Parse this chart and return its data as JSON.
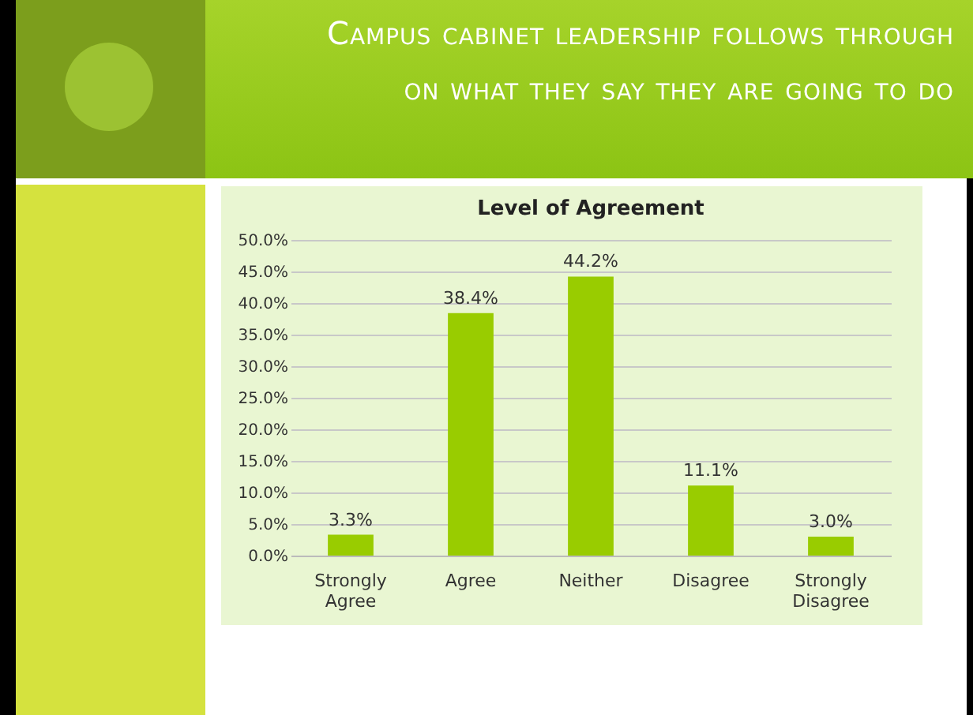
{
  "chart_data": {
    "type": "bar",
    "title": "Campus cabinet leadership follows through on what they say they are going to do",
    "subtitle": "Level of Agreement",
    "categories": [
      "Strongly Agree",
      "Agree",
      "Neither",
      "Disagree",
      "Strongly Disagree"
    ],
    "values": [
      3.3,
      38.4,
      44.2,
      11.1,
      3.0
    ],
    "value_labels": [
      "3.3%",
      "38.4%",
      "44.2%",
      "11.1%",
      "3.0%"
    ],
    "color": "#99cc00",
    "ylim": [
      0,
      50
    ],
    "yticks": [
      {
        "value": 0,
        "label": "0.0%"
      },
      {
        "value": 5,
        "label": "5.0%"
      },
      {
        "value": 10,
        "label": "10.0%"
      },
      {
        "value": 15,
        "label": "15.0%"
      },
      {
        "value": 20,
        "label": "20.0%"
      },
      {
        "value": 25,
        "label": "25.0%"
      },
      {
        "value": 30,
        "label": "30.0%"
      },
      {
        "value": 35,
        "label": "35.0%"
      },
      {
        "value": 40,
        "label": "40.0%"
      },
      {
        "value": 45,
        "label": "45.0%"
      },
      {
        "value": 50,
        "label": "50.0%"
      }
    ],
    "grid": "y"
  }
}
